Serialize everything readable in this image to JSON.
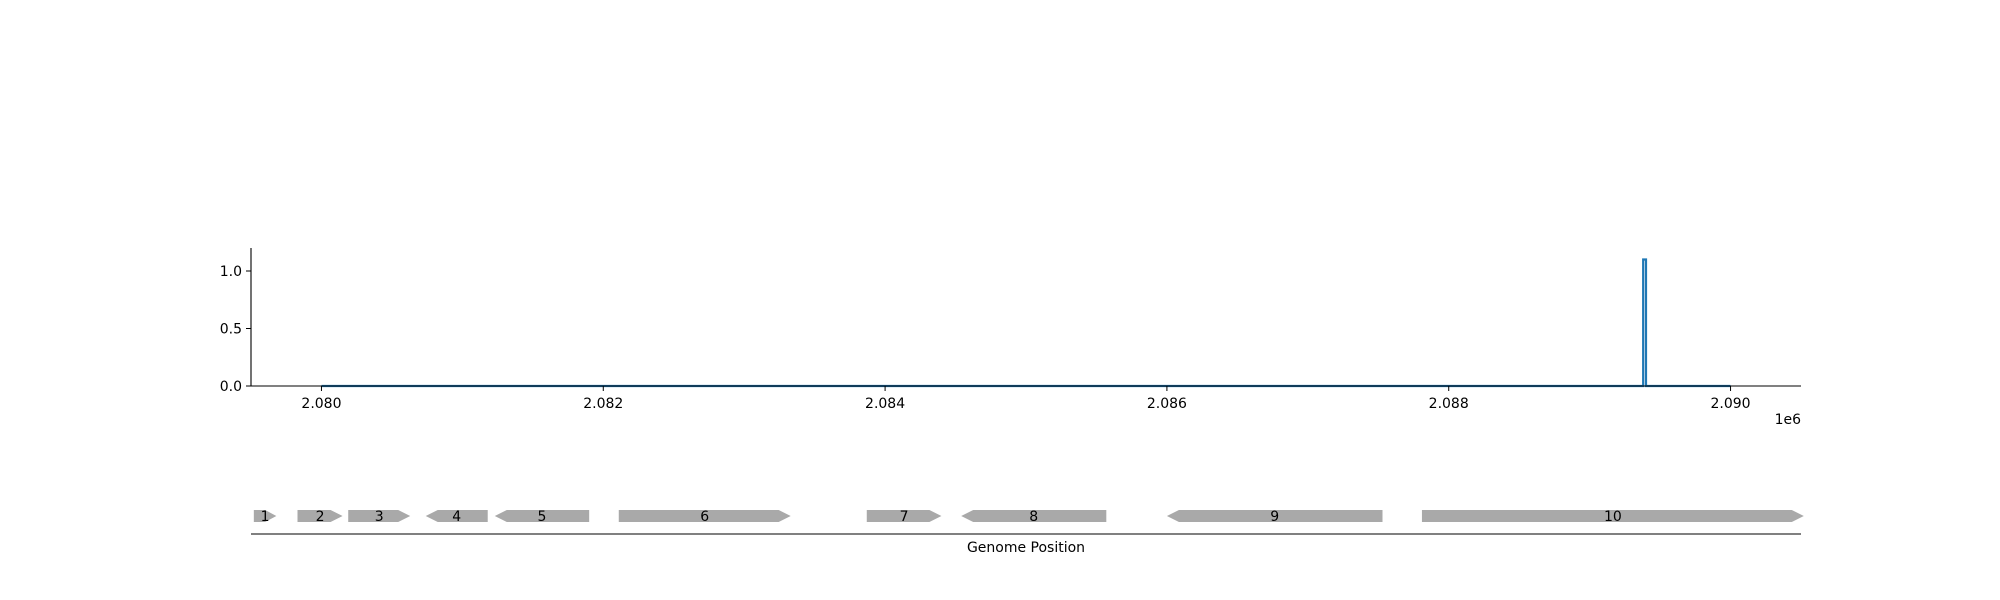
{
  "chart_data": [
    {
      "type": "line",
      "title": "",
      "xlabel": "",
      "ylabel": "",
      "x_offset_label": "1e6",
      "xlim": [
        2.0795,
        2.0905
      ],
      "ylim": [
        0.0,
        1.2
      ],
      "xticks": [
        2.08,
        2.082,
        2.084,
        2.086,
        2.088,
        2.09
      ],
      "xtick_labels": [
        "2.080",
        "2.082",
        "2.084",
        "2.086",
        "2.088",
        "2.090"
      ],
      "yticks": [
        0.0,
        0.5,
        1.0
      ],
      "ytick_labels": [
        "0.0",
        "0.5",
        "1.0"
      ],
      "grid": false,
      "series": [
        {
          "color": "#1f77b4",
          "x": [
            2.08,
            2.08938,
            2.08938,
            2.0894,
            2.0894,
            2.09
          ],
          "y": [
            0.0,
            0.0,
            1.1,
            1.1,
            0.0,
            0.0
          ]
        }
      ]
    },
    {
      "type": "gene-map",
      "xlabel": "Genome Position",
      "gene_color": "#a9a9a9",
      "genes": [
        {
          "label": "1",
          "start": 2.07952,
          "end": 2.07968,
          "strand": "+"
        },
        {
          "label": "2",
          "start": 2.07983,
          "end": 2.08015,
          "strand": "+"
        },
        {
          "label": "3",
          "start": 2.08019,
          "end": 2.08063,
          "strand": "+"
        },
        {
          "label": "4",
          "start": 2.08074,
          "end": 2.08118,
          "strand": "-"
        },
        {
          "label": "5",
          "start": 2.08123,
          "end": 2.0819,
          "strand": "-"
        },
        {
          "label": "6",
          "start": 2.08211,
          "end": 2.08333,
          "strand": "+"
        },
        {
          "label": "7",
          "start": 2.08387,
          "end": 2.0844,
          "strand": "+"
        },
        {
          "label": "8",
          "start": 2.08454,
          "end": 2.08557,
          "strand": "-"
        },
        {
          "label": "9",
          "start": 2.086,
          "end": 2.08753,
          "strand": "-"
        },
        {
          "label": "10",
          "start": 2.08781,
          "end": 2.09052,
          "strand": "+"
        }
      ]
    }
  ]
}
